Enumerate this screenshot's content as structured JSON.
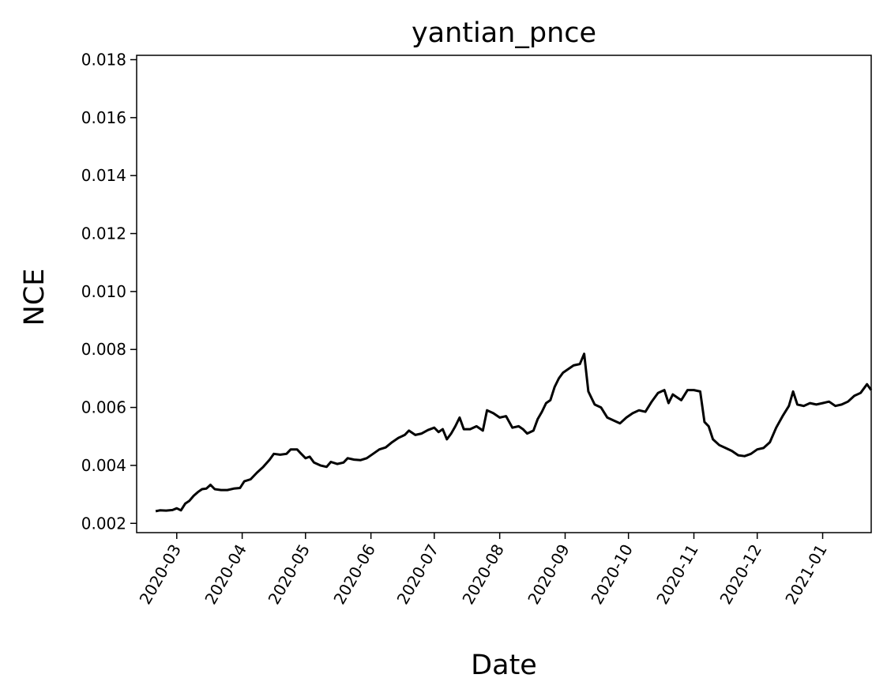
{
  "chart_data": {
    "type": "line",
    "title": "yantian_pnce",
    "xlabel": "Date",
    "ylabel": "NCE",
    "line_color": "#000000",
    "grid": false,
    "legend": "none",
    "xlim": [
      "2020-02-11",
      "2021-01-24"
    ],
    "ylim": [
      0.00168,
      0.01815
    ],
    "x_ticks": [
      "2020-03",
      "2020-04",
      "2020-05",
      "2020-06",
      "2020-07",
      "2020-08",
      "2020-09",
      "2020-10",
      "2020-11",
      "2020-12",
      "2021-01"
    ],
    "y_ticks": [
      "0.002",
      "0.004",
      "0.006",
      "0.008",
      "0.010",
      "0.012",
      "0.014",
      "0.016",
      "0.018"
    ],
    "series": [
      {
        "points": [
          [
            "2020-02-20",
            0.00242
          ],
          [
            "2020-02-22",
            0.00245
          ],
          [
            "2020-02-25",
            0.00244
          ],
          [
            "2020-02-28",
            0.00246
          ],
          [
            "2020-03-01",
            0.00252
          ],
          [
            "2020-03-03",
            0.00245
          ],
          [
            "2020-03-05",
            0.00268
          ],
          [
            "2020-03-07",
            0.00278
          ],
          [
            "2020-03-09",
            0.00295
          ],
          [
            "2020-03-11",
            0.00308
          ],
          [
            "2020-03-13",
            0.00318
          ],
          [
            "2020-03-15",
            0.0032
          ],
          [
            "2020-03-17",
            0.00333
          ],
          [
            "2020-03-19",
            0.00318
          ],
          [
            "2020-03-22",
            0.00315
          ],
          [
            "2020-03-25",
            0.00315
          ],
          [
            "2020-03-28",
            0.0032
          ],
          [
            "2020-03-31",
            0.00322
          ],
          [
            "2020-04-02",
            0.00345
          ],
          [
            "2020-04-05",
            0.00352
          ],
          [
            "2020-04-08",
            0.00375
          ],
          [
            "2020-04-11",
            0.00395
          ],
          [
            "2020-04-14",
            0.0042
          ],
          [
            "2020-04-16",
            0.0044
          ],
          [
            "2020-04-19",
            0.00437
          ],
          [
            "2020-04-22",
            0.0044
          ],
          [
            "2020-04-24",
            0.00455
          ],
          [
            "2020-04-27",
            0.00455
          ],
          [
            "2020-04-29",
            0.0044
          ],
          [
            "2020-05-01",
            0.00425
          ],
          [
            "2020-05-03",
            0.0043
          ],
          [
            "2020-05-05",
            0.0041
          ],
          [
            "2020-05-08",
            0.004
          ],
          [
            "2020-05-11",
            0.00395
          ],
          [
            "2020-05-13",
            0.00412
          ],
          [
            "2020-05-16",
            0.00405
          ],
          [
            "2020-05-19",
            0.0041
          ],
          [
            "2020-05-21",
            0.00425
          ],
          [
            "2020-05-24",
            0.0042
          ],
          [
            "2020-05-27",
            0.00418
          ],
          [
            "2020-05-30",
            0.00425
          ],
          [
            "2020-06-02",
            0.0044
          ],
          [
            "2020-06-05",
            0.00455
          ],
          [
            "2020-06-08",
            0.00462
          ],
          [
            "2020-06-11",
            0.0048
          ],
          [
            "2020-06-14",
            0.00495
          ],
          [
            "2020-06-17",
            0.00505
          ],
          [
            "2020-06-19",
            0.0052
          ],
          [
            "2020-06-22",
            0.00505
          ],
          [
            "2020-06-25",
            0.0051
          ],
          [
            "2020-06-28",
            0.00522
          ],
          [
            "2020-07-01",
            0.0053
          ],
          [
            "2020-07-03",
            0.00515
          ],
          [
            "2020-07-05",
            0.00525
          ],
          [
            "2020-07-07",
            0.0049
          ],
          [
            "2020-07-09",
            0.0051
          ],
          [
            "2020-07-11",
            0.00535
          ],
          [
            "2020-07-13",
            0.00565
          ],
          [
            "2020-07-15",
            0.00525
          ],
          [
            "2020-07-18",
            0.00525
          ],
          [
            "2020-07-21",
            0.00535
          ],
          [
            "2020-07-24",
            0.0052
          ],
          [
            "2020-07-26",
            0.0059
          ],
          [
            "2020-07-29",
            0.0058
          ],
          [
            "2020-08-01",
            0.00565
          ],
          [
            "2020-08-04",
            0.0057
          ],
          [
            "2020-08-07",
            0.0053
          ],
          [
            "2020-08-10",
            0.00535
          ],
          [
            "2020-08-12",
            0.00525
          ],
          [
            "2020-08-14",
            0.0051
          ],
          [
            "2020-08-17",
            0.0052
          ],
          [
            "2020-08-19",
            0.0056
          ],
          [
            "2020-08-21",
            0.00585
          ],
          [
            "2020-08-23",
            0.00615
          ],
          [
            "2020-08-25",
            0.00625
          ],
          [
            "2020-08-27",
            0.0067
          ],
          [
            "2020-08-29",
            0.007
          ],
          [
            "2020-08-31",
            0.0072
          ],
          [
            "2020-09-02",
            0.0073
          ],
          [
            "2020-09-05",
            0.00745
          ],
          [
            "2020-09-08",
            0.0075
          ],
          [
            "2020-09-10",
            0.00785
          ],
          [
            "2020-09-12",
            0.00655
          ],
          [
            "2020-09-15",
            0.0061
          ],
          [
            "2020-09-18",
            0.006
          ],
          [
            "2020-09-21",
            0.00565
          ],
          [
            "2020-09-24",
            0.00555
          ],
          [
            "2020-09-27",
            0.00545
          ],
          [
            "2020-09-30",
            0.00565
          ],
          [
            "2020-10-03",
            0.0058
          ],
          [
            "2020-10-06",
            0.0059
          ],
          [
            "2020-10-09",
            0.00585
          ],
          [
            "2020-10-12",
            0.0062
          ],
          [
            "2020-10-15",
            0.0065
          ],
          [
            "2020-10-18",
            0.0066
          ],
          [
            "2020-10-20",
            0.00615
          ],
          [
            "2020-10-22",
            0.00645
          ],
          [
            "2020-10-24",
            0.00635
          ],
          [
            "2020-10-26",
            0.00625
          ],
          [
            "2020-10-29",
            0.0066
          ],
          [
            "2020-11-01",
            0.0066
          ],
          [
            "2020-11-04",
            0.00655
          ],
          [
            "2020-11-06",
            0.0055
          ],
          [
            "2020-11-08",
            0.00535
          ],
          [
            "2020-11-10",
            0.0049
          ],
          [
            "2020-11-13",
            0.0047
          ],
          [
            "2020-11-16",
            0.0046
          ],
          [
            "2020-11-19",
            0.0045
          ],
          [
            "2020-11-22",
            0.00435
          ],
          [
            "2020-11-25",
            0.00432
          ],
          [
            "2020-11-28",
            0.0044
          ],
          [
            "2020-12-01",
            0.00455
          ],
          [
            "2020-12-04",
            0.0046
          ],
          [
            "2020-12-07",
            0.0048
          ],
          [
            "2020-12-10",
            0.0053
          ],
          [
            "2020-12-13",
            0.0057
          ],
          [
            "2020-12-16",
            0.00605
          ],
          [
            "2020-12-18",
            0.00655
          ],
          [
            "2020-12-20",
            0.0061
          ],
          [
            "2020-12-23",
            0.00605
          ],
          [
            "2020-12-26",
            0.00615
          ],
          [
            "2020-12-29",
            0.0061
          ],
          [
            "2021-01-01",
            0.00615
          ],
          [
            "2021-01-04",
            0.0062
          ],
          [
            "2021-01-07",
            0.00605
          ],
          [
            "2021-01-10",
            0.0061
          ],
          [
            "2021-01-13",
            0.0062
          ],
          [
            "2021-01-16",
            0.0064
          ],
          [
            "2021-01-19",
            0.0065
          ],
          [
            "2021-01-22",
            0.0068
          ],
          [
            "2021-01-24",
            0.0066
          ]
        ]
      }
    ]
  }
}
